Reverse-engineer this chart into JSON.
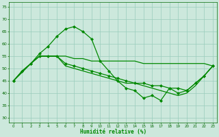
{
  "xlabel": "Humidité relative (%)",
  "xlim": [
    -0.5,
    23.5
  ],
  "ylim": [
    28,
    77
  ],
  "yticks": [
    30,
    35,
    40,
    45,
    50,
    55,
    60,
    65,
    70,
    75
  ],
  "xticks": [
    0,
    1,
    2,
    3,
    4,
    5,
    6,
    7,
    8,
    9,
    10,
    11,
    12,
    13,
    14,
    15,
    16,
    17,
    18,
    19,
    20,
    21,
    22,
    23
  ],
  "bg_color": "#cce8dc",
  "grid_color": "#99ccbb",
  "line_color": "#008800",
  "line1_x": [
    0,
    1,
    2,
    3,
    4,
    5,
    6,
    7,
    8,
    9,
    10,
    11,
    12,
    13,
    14,
    15,
    16,
    17,
    18,
    19,
    20,
    21,
    22,
    23
  ],
  "line1_y": [
    45,
    49,
    52,
    55,
    55,
    55,
    55,
    54,
    54,
    53,
    53,
    53,
    53,
    53,
    53,
    52,
    52,
    52,
    52,
    52,
    52,
    52,
    52,
    51
  ],
  "line2_x": [
    0,
    1,
    2,
    3,
    4,
    5,
    6,
    7,
    8,
    9,
    10,
    11,
    12,
    13,
    14,
    15,
    16,
    17,
    18,
    19,
    20,
    21,
    22,
    23
  ],
  "line2_y": [
    45,
    49,
    52,
    56,
    59,
    63,
    66,
    67,
    65,
    62,
    53,
    49,
    45,
    42,
    41,
    38,
    39,
    37,
    42,
    42,
    41,
    44,
    47,
    51
  ],
  "line3_x": [
    0,
    2,
    3,
    4,
    5,
    6,
    7,
    8,
    9,
    10,
    11,
    12,
    13,
    14,
    15,
    16,
    17,
    18,
    19,
    20,
    21,
    22,
    23
  ],
  "line3_y": [
    45,
    52,
    55,
    55,
    55,
    52,
    51,
    50,
    49,
    48,
    47,
    46,
    45,
    44,
    44,
    43,
    43,
    42,
    40,
    41,
    44,
    47,
    51
  ],
  "line4_x": [
    0,
    2,
    3,
    4,
    5,
    6,
    7,
    8,
    9,
    10,
    11,
    12,
    13,
    14,
    15,
    16,
    17,
    18,
    19,
    20,
    21,
    22,
    23
  ],
  "line4_y": [
    45,
    52,
    55,
    55,
    55,
    51,
    50,
    49,
    48,
    47,
    46,
    45,
    44,
    44,
    43,
    42,
    41,
    40,
    39,
    40,
    43,
    47,
    51
  ]
}
